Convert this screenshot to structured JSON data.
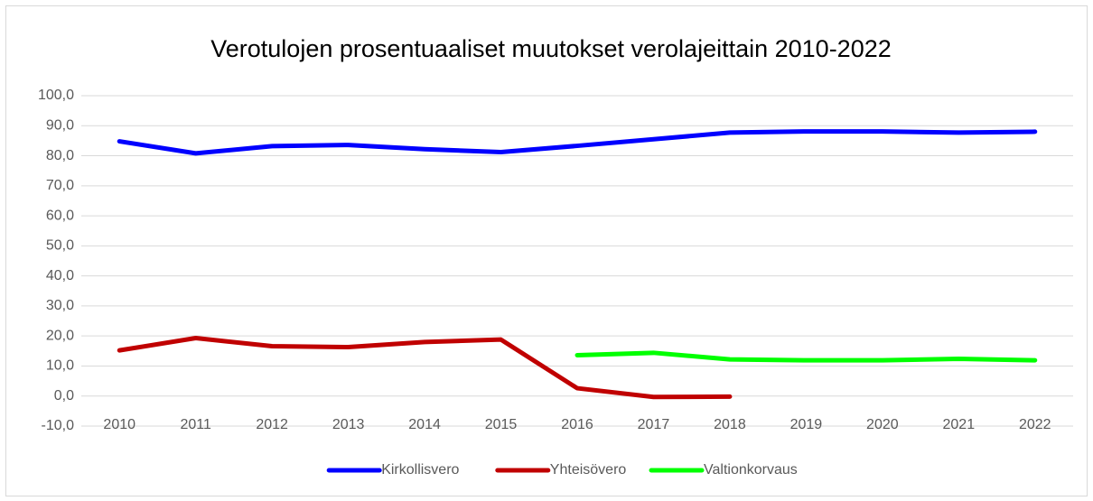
{
  "chart_data": {
    "type": "line",
    "title": "Verotulojen prosentuaaliset muutokset verolajeittain 2010-2022",
    "categories": [
      "2010",
      "2011",
      "2012",
      "2013",
      "2014",
      "2015",
      "2016",
      "2017",
      "2018",
      "2019",
      "2020",
      "2021",
      "2022"
    ],
    "series": [
      {
        "name": "Kirkollisvero",
        "color": "#0000ff",
        "values": [
          84.8,
          80.8,
          83.2,
          83.6,
          82.2,
          81.2,
          83.3,
          85.5,
          87.7,
          88.1,
          88.1,
          87.7,
          88.0
        ]
      },
      {
        "name": "Yhteisövero",
        "color": "#c00000",
        "values": [
          15.2,
          19.3,
          16.6,
          16.3,
          18.0,
          18.8,
          2.6,
          -0.3,
          -0.2,
          null,
          null,
          null,
          null
        ]
      },
      {
        "name": "Valtionkorvaus",
        "color": "#00ff00",
        "values": [
          null,
          null,
          null,
          null,
          null,
          null,
          13.6,
          14.4,
          12.2,
          11.9,
          11.9,
          12.4,
          11.9
        ]
      }
    ],
    "ylim": [
      -10,
      100
    ],
    "yticks": [
      {
        "value": -10,
        "label": "-10,0"
      },
      {
        "value": 0,
        "label": "0,0"
      },
      {
        "value": 10,
        "label": "10,0"
      },
      {
        "value": 20,
        "label": "20,0"
      },
      {
        "value": 30,
        "label": "30,0"
      },
      {
        "value": 40,
        "label": "40,0"
      },
      {
        "value": 50,
        "label": "50,0"
      },
      {
        "value": 60,
        "label": "60,0"
      },
      {
        "value": 70,
        "label": "70,0"
      },
      {
        "value": 80,
        "label": "80,0"
      },
      {
        "value": 90,
        "label": "90,0"
      },
      {
        "value": 100,
        "label": "100,0"
      }
    ],
    "grid": true,
    "legend": "bottom"
  }
}
